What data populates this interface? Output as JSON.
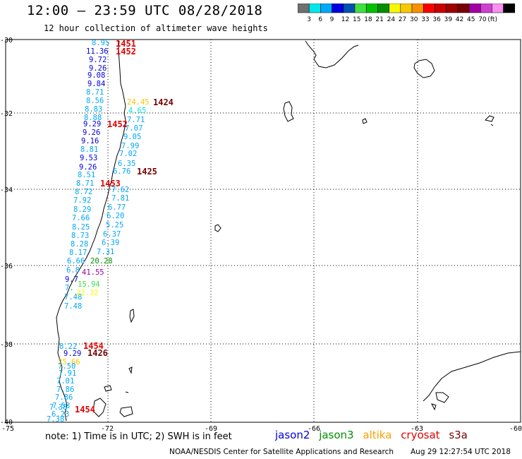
{
  "header": {
    "title": "12:00 – 23:59 UTC 08/28/2018",
    "subtitle": "12 hour collection of altimeter wave heights"
  },
  "colorbar": {
    "colors": [
      "#707070",
      "#00e8e8",
      "#00a8f8",
      "#0000e0",
      "#0050b0",
      "#40e040",
      "#00c000",
      "#009000",
      "#f8f800",
      "#f8c800",
      "#f89000",
      "#f80000",
      "#c80000",
      "#a00000",
      "#780000",
      "#a000a0",
      "#d040d0",
      "#f890f0",
      "#000000"
    ],
    "labels": [
      "3",
      "6",
      "9",
      "12",
      "15",
      "18",
      "21",
      "24",
      "27",
      "30",
      "33",
      "36",
      "39",
      "42",
      "45",
      "70",
      "(ft)"
    ]
  },
  "axes": {
    "lat_labels": [
      "-30",
      "-32",
      "-34",
      "-36",
      "-38",
      "-40"
    ],
    "lon_labels": [
      "-75",
      "-72",
      "-69",
      "-66",
      "-63",
      "-60"
    ]
  },
  "observations": [
    {
      "v": "8.95",
      "c": "#00a8f8"
    },
    {
      "v": "11.36",
      "c": "#0000e0"
    },
    {
      "v": "9.72",
      "c": "#0000e0"
    },
    {
      "v": "9.26",
      "c": "#0000e0"
    },
    {
      "v": "9.08",
      "c": "#0000e0"
    },
    {
      "v": "9.84",
      "c": "#0000e0"
    },
    {
      "v": "8.71",
      "c": "#00a8f8"
    },
    {
      "v": "8.56",
      "c": "#00a8f8"
    },
    {
      "v": "8.83",
      "c": "#00a8f8"
    },
    {
      "v": "8.88",
      "c": "#00a8f8"
    },
    {
      "v": "9.29",
      "c": "#0000e0"
    },
    {
      "v": "9.26",
      "c": "#0000e0"
    },
    {
      "v": "9.16",
      "c": "#0000e0"
    },
    {
      "v": "8.81",
      "c": "#00a8f8"
    },
    {
      "v": "9.53",
      "c": "#0000e0"
    },
    {
      "v": "9.26",
      "c": "#0000e0"
    },
    {
      "v": "8.51",
      "c": "#00a8f8"
    },
    {
      "v": "8.71",
      "c": "#00a8f8"
    },
    {
      "v": "8.72",
      "c": "#00a8f8"
    },
    {
      "v": "7.92",
      "c": "#00a8f8"
    },
    {
      "v": "8.29",
      "c": "#00a8f8"
    },
    {
      "v": "7.66",
      "c": "#00a8f8"
    },
    {
      "v": "8.25",
      "c": "#00a8f8"
    },
    {
      "v": "8.73",
      "c": "#00a8f8"
    },
    {
      "v": "8.28",
      "c": "#00a8f8"
    },
    {
      "v": "8.17",
      "c": "#00a8f8"
    },
    {
      "v": "6.66",
      "c": "#00a8f8"
    },
    {
      "v": "6.8",
      "c": "#00a8f8"
    },
    {
      "v": "9.7",
      "c": "#0000e0"
    },
    {
      "v": "7.",
      "c": "#00a8f8"
    },
    {
      "v": "7.48",
      "c": "#00a8f8"
    },
    {
      "v": "7.48",
      "c": "#00a8f8"
    },
    {
      "v": "24.45",
      "c": "#f8c800"
    },
    {
      "v": "4.65",
      "c": "#00e8e8"
    },
    {
      "v": "7.71",
      "c": "#00a8f8"
    },
    {
      "v": "7.07",
      "c": "#00a8f8"
    },
    {
      "v": "9.05",
      "c": "#00a8f8"
    },
    {
      "v": "7.99",
      "c": "#00a8f8"
    },
    {
      "v": "7.02",
      "c": "#00a8f8"
    },
    {
      "v": "6.35",
      "c": "#00a8f8"
    },
    {
      "v": "6.76",
      "c": "#00a8f8"
    },
    {
      "v": "7.62",
      "c": "#00a8f8"
    },
    {
      "v": "7.81",
      "c": "#00a8f8"
    },
    {
      "v": "6.77",
      "c": "#00a8f8"
    },
    {
      "v": "6.20",
      "c": "#00a8f8"
    },
    {
      "v": "5.25",
      "c": "#00a8f8"
    },
    {
      "v": "6.37",
      "c": "#00a8f8"
    },
    {
      "v": "6.39",
      "c": "#00a8f8"
    },
    {
      "v": "7.31",
      "c": "#00a8f8"
    },
    {
      "v": "20.28",
      "c": "#009000"
    },
    {
      "v": "41.55",
      "c": "#a000a0"
    },
    {
      "v": "15.94",
      "c": "#40e040"
    },
    {
      "v": "22.32",
      "c": "#f8f800"
    },
    {
      "v": "8.22",
      "c": "#00a8f8"
    },
    {
      "v": "9.29",
      "c": "#0000e0"
    },
    {
      "v": "25.66",
      "c": "#f8c800"
    },
    {
      "v": "7.50",
      "c": "#00a8f8"
    },
    {
      "v": "7.91",
      "c": "#00a8f8"
    },
    {
      "v": "7.01",
      "c": "#00a8f8"
    },
    {
      "v": "7.86",
      "c": "#00a8f8"
    },
    {
      "v": "7.86",
      "c": "#00a8f8"
    },
    {
      "v": "7.53",
      "c": "#00a8f8"
    },
    {
      "v": "6.23",
      "c": "#00a8f8"
    },
    {
      "v": "7.38",
      "c": "#00a8f8"
    },
    {
      "v": "7.38",
      "c": "#00a8f8"
    }
  ],
  "time_labels": [
    {
      "v": "1451",
      "c": "#e00000"
    },
    {
      "v": "1452",
      "c": "#e00000"
    },
    {
      "v": "1424",
      "c": "#780000"
    },
    {
      "v": "1452",
      "c": "#e00000"
    },
    {
      "v": "1425",
      "c": "#780000"
    },
    {
      "v": "1453",
      "c": "#e00000"
    },
    {
      "v": "1454",
      "c": "#e00000"
    },
    {
      "v": "1426",
      "c": "#780000"
    },
    {
      "v": "1454",
      "c": "#e00000"
    }
  ],
  "footer": {
    "note": "note: 1) Time is in UTC; 2) SWH is in feet",
    "satellites": [
      {
        "name": "jason2",
        "color": "#0000e0"
      },
      {
        "name": "jason3",
        "color": "#009000"
      },
      {
        "name": "altika",
        "color": "#f8a000"
      },
      {
        "name": "cryosat",
        "color": "#e00000"
      },
      {
        "name": "s3a",
        "color": "#780000"
      }
    ],
    "credit": "NOAA/NESDIS Center for Satellite Applications and Research",
    "timestamp": "Aug 29 12:27:54 UTC 2018"
  }
}
